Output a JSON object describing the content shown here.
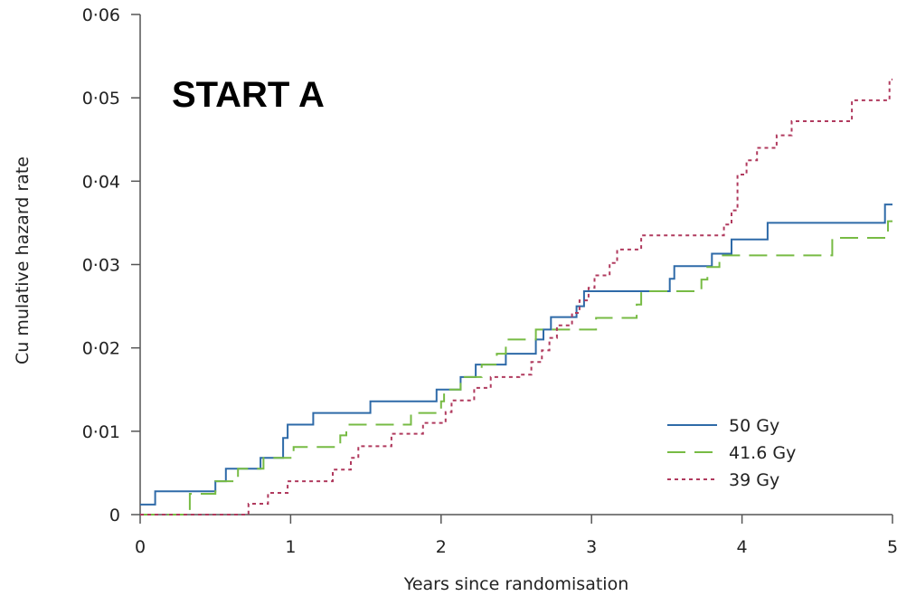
{
  "chart_data": {
    "type": "line",
    "step": true,
    "title": "START A",
    "xlabel": "Years since randomisation",
    "ylabel": "Cu mulative hazard rate",
    "xlim": [
      0,
      5
    ],
    "ylim": [
      0,
      0.06
    ],
    "xticks": [
      "0",
      "1",
      "2",
      "3",
      "4",
      "5"
    ],
    "yticks": [
      "0",
      "0·01",
      "0·02",
      "0·03",
      "0·04",
      "0·05",
      "0·06"
    ],
    "grid": false,
    "legend_position": "bottom-right",
    "series": [
      {
        "name": "50 Gy",
        "color": "#2e6aa8",
        "dash": "solid",
        "points": [
          [
            0,
            0.0012
          ],
          [
            0.1,
            0.0028
          ],
          [
            0.5,
            0.004
          ],
          [
            0.57,
            0.0055
          ],
          [
            0.8,
            0.0068
          ],
          [
            0.95,
            0.0092
          ],
          [
            0.98,
            0.0108
          ],
          [
            1.15,
            0.0122
          ],
          [
            1.53,
            0.0136
          ],
          [
            1.97,
            0.015
          ],
          [
            2.13,
            0.0165
          ],
          [
            2.23,
            0.018
          ],
          [
            2.43,
            0.0193
          ],
          [
            2.63,
            0.021
          ],
          [
            2.68,
            0.0222
          ],
          [
            2.73,
            0.0237
          ],
          [
            2.9,
            0.025
          ],
          [
            2.95,
            0.0268
          ],
          [
            3.52,
            0.0283
          ],
          [
            3.55,
            0.0298
          ],
          [
            3.8,
            0.0313
          ],
          [
            3.93,
            0.033
          ],
          [
            4.17,
            0.035
          ],
          [
            4.95,
            0.0372
          ],
          [
            5,
            0.0372
          ]
        ]
      },
      {
        "name": "41.6 Gy",
        "color": "#77bb44",
        "dash": "20,10",
        "points": [
          [
            0,
            0
          ],
          [
            0.22,
            0
          ],
          [
            0.33,
            0.0025
          ],
          [
            0.5,
            0.004
          ],
          [
            0.65,
            0.0055
          ],
          [
            0.82,
            0.0068
          ],
          [
            1.02,
            0.0081
          ],
          [
            1.33,
            0.0095
          ],
          [
            1.37,
            0.0108
          ],
          [
            1.8,
            0.0122
          ],
          [
            2,
            0.0136
          ],
          [
            2.02,
            0.015
          ],
          [
            2.13,
            0.0165
          ],
          [
            2.27,
            0.018
          ],
          [
            2.37,
            0.0193
          ],
          [
            2.43,
            0.021
          ],
          [
            2.63,
            0.0222
          ],
          [
            3.03,
            0.0236
          ],
          [
            3.3,
            0.0252
          ],
          [
            3.33,
            0.0268
          ],
          [
            3.73,
            0.0282
          ],
          [
            3.77,
            0.0297
          ],
          [
            3.85,
            0.0311
          ],
          [
            4.6,
            0.0332
          ],
          [
            4.97,
            0.0352
          ],
          [
            5,
            0.0352
          ]
        ]
      },
      {
        "name": "39 Gy",
        "color": "#b03a5e",
        "dash": "4,4",
        "points": [
          [
            0,
            0
          ],
          [
            0.5,
            0
          ],
          [
            0.72,
            0.0013
          ],
          [
            0.85,
            0.0026
          ],
          [
            0.98,
            0.004
          ],
          [
            1.28,
            0.0054
          ],
          [
            1.4,
            0.0068
          ],
          [
            1.45,
            0.0082
          ],
          [
            1.67,
            0.0097
          ],
          [
            1.88,
            0.011
          ],
          [
            2.03,
            0.0123
          ],
          [
            2.07,
            0.0137
          ],
          [
            2.22,
            0.0152
          ],
          [
            2.33,
            0.0165
          ],
          [
            2.52,
            0.0168
          ],
          [
            2.6,
            0.0183
          ],
          [
            2.67,
            0.0197
          ],
          [
            2.72,
            0.0212
          ],
          [
            2.77,
            0.0227
          ],
          [
            2.87,
            0.0242
          ],
          [
            2.92,
            0.0257
          ],
          [
            2.98,
            0.0272
          ],
          [
            3.02,
            0.0287
          ],
          [
            3.12,
            0.0302
          ],
          [
            3.17,
            0.0318
          ],
          [
            3.33,
            0.0335
          ],
          [
            3.88,
            0.0348
          ],
          [
            3.93,
            0.0365
          ],
          [
            3.97,
            0.0408
          ],
          [
            4.03,
            0.0425
          ],
          [
            4.1,
            0.044
          ],
          [
            4.23,
            0.0455
          ],
          [
            4.33,
            0.0472
          ],
          [
            4.73,
            0.0497
          ],
          [
            4.98,
            0.0522
          ],
          [
            5,
            0.0522
          ]
        ]
      }
    ]
  }
}
